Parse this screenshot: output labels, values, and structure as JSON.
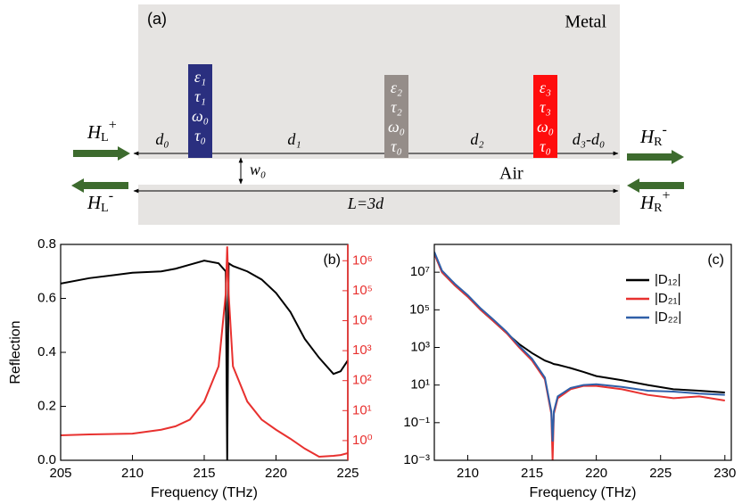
{
  "diagram": {
    "panel_label": "(a)",
    "metal_label": "Metal",
    "air_label": "Air",
    "resonators": [
      {
        "lines": [
          "ε₁",
          "τ₁",
          "ω₀",
          "τ₀"
        ],
        "color": "#2a2f7f"
      },
      {
        "lines": [
          "ε₂",
          "τ₂",
          "ω₀",
          "τ₀"
        ],
        "color": "#958d89"
      },
      {
        "lines": [
          "ε₃",
          "τ₃",
          "ω₀",
          "τ₀"
        ],
        "color": "#ff0d0d"
      }
    ],
    "distances": [
      "d₀",
      "d₁",
      "d₂",
      "d₃-d₀"
    ],
    "width_label": "w₀",
    "length_label": "L=3d",
    "ports": [
      {
        "base": "H",
        "sub": "L",
        "sup": "+"
      },
      {
        "base": "H",
        "sub": "L",
        "sup": "-"
      },
      {
        "base": "H",
        "sub": "R",
        "sup": "-"
      },
      {
        "base": "H",
        "sub": "R",
        "sup": "+"
      }
    ]
  },
  "chart_data": [
    {
      "type": "line",
      "panel_label": "(b)",
      "x_label": "Frequency (THz)",
      "y_label": "Reflection",
      "x": [
        205,
        207,
        210,
        212,
        213,
        214,
        215,
        216,
        216.5,
        216.6,
        216.7,
        217,
        218,
        219,
        220,
        221,
        222,
        223,
        224,
        224.5,
        225
      ],
      "xlim": [
        205,
        225
      ],
      "xticks": [
        205,
        210,
        215,
        220,
        225
      ],
      "ylim": [
        0,
        0.8
      ],
      "yticks": [
        {
          "value": 0,
          "label": "0.0"
        },
        0.2,
        0.4,
        0.6,
        0.8
      ],
      "y2scale": "log",
      "y2lim": [
        0.22,
        3500000
      ],
      "y2color": "#e8312f",
      "y2ticks": [
        {
          "value": 1,
          "label": "10⁰"
        },
        {
          "value": 10,
          "label": "10¹"
        },
        {
          "value": 100,
          "label": "10²"
        },
        {
          "value": 1000,
          "label": "10³"
        },
        {
          "value": 10000,
          "label": "10⁴"
        },
        {
          "value": 100000,
          "label": "10⁵"
        },
        {
          "value": 1000000,
          "label": "10⁶"
        }
      ],
      "series": [
        {
          "color": "#000000",
          "values": [
            0.655,
            0.675,
            0.695,
            0.7,
            0.71,
            0.725,
            0.74,
            0.73,
            0.7,
            0.0,
            0.73,
            0.72,
            0.7,
            0.67,
            0.62,
            0.55,
            0.45,
            0.38,
            0.32,
            0.33,
            0.37
          ]
        },
        {
          "color": "#e8312f",
          "axis": "y2",
          "values": [
            1.5,
            1.6,
            1.7,
            2.3,
            3,
            5,
            20,
            300,
            80000,
            3000000,
            80000,
            300,
            20,
            5,
            2.3,
            1.15,
            0.54,
            0.29,
            0.31,
            0.33,
            0.38
          ]
        }
      ]
    },
    {
      "type": "line",
      "panel_label": "(c)",
      "x_label": "Frequency (THz)",
      "x": [
        207.4,
        208,
        209,
        210,
        211,
        212,
        213,
        214,
        215,
        216,
        216.5,
        216.6,
        216.7,
        217,
        218,
        219,
        220,
        222,
        224,
        226,
        228,
        230
      ],
      "xlim": [
        207.4,
        230.5
      ],
      "xticks": [
        210,
        215,
        220,
        225,
        230
      ],
      "yscale": "log",
      "ylim": [
        0.001,
        300000000
      ],
      "yticks": [
        {
          "value": 0.001,
          "label": "10⁻³"
        },
        {
          "value": 0.1,
          "label": "10⁻¹"
        },
        {
          "value": 10,
          "label": "10¹"
        },
        {
          "value": 1000,
          "label": "10³"
        },
        {
          "value": 100000,
          "label": "10⁵"
        },
        {
          "value": 10000000,
          "label": "10⁷"
        }
      ],
      "legend": "upper right",
      "series": [
        {
          "name": "|D₁₂|",
          "color": "#000000",
          "values": [
            100000000,
            10000000,
            2000000,
            500000,
            100000,
            25000,
            6000,
            1500,
            500,
            200,
            150,
            140,
            130,
            120,
            80,
            50,
            30,
            18,
            10,
            6,
            5,
            4
          ]
        },
        {
          "name": "|D₂₁|",
          "color": "#e8312f",
          "values": [
            100000000,
            10000000,
            2000000,
            500000,
            100000,
            25000,
            6000,
            1000,
            200,
            20,
            0.3,
            0.001,
            0.3,
            2,
            6,
            9,
            9,
            6,
            3,
            2,
            2.5,
            1.5
          ]
        },
        {
          "name": "|D₂₂|",
          "color": "#2f5fa8",
          "values": [
            120000000,
            12000000,
            2400000,
            600000,
            120000,
            30000,
            7000,
            1200,
            250,
            25,
            0.4,
            0.01,
            0.4,
            2.5,
            7,
            10,
            11,
            8,
            5,
            4.5,
            3.5,
            3
          ]
        }
      ]
    }
  ]
}
